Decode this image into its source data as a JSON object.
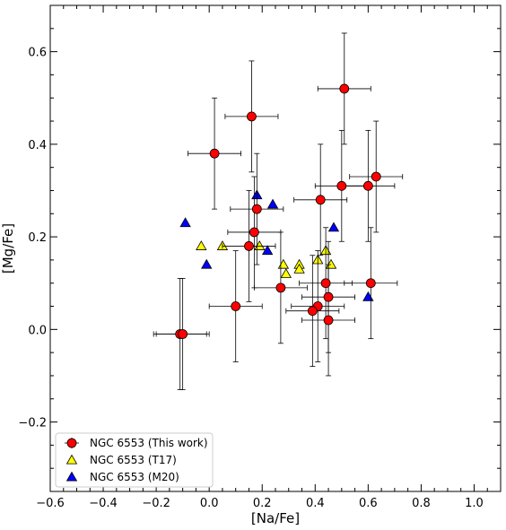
{
  "chart_data": {
    "type": "scatter",
    "xlabel": "[Na/Fe]",
    "ylabel": "[Mg/Fe]",
    "xlim": [
      -0.6,
      1.1
    ],
    "ylim": [
      -0.35,
      0.7
    ],
    "x_ticks": [
      -0.6,
      -0.4,
      -0.2,
      0.0,
      0.2,
      0.4,
      0.6,
      0.8,
      1.0
    ],
    "x_tick_labels": [
      "−0.6",
      "−0.4",
      "−0.2",
      "0.0",
      "0.2",
      "0.4",
      "0.6",
      "0.8",
      "1.0"
    ],
    "y_ticks": [
      -0.2,
      0.0,
      0.2,
      0.4,
      0.6
    ],
    "y_tick_labels": [
      "−0.2",
      "0.0",
      "0.2",
      "0.4",
      "0.6"
    ],
    "legend_position": "lower-left",
    "series": [
      {
        "name": "NGC 6553 (This work)",
        "marker": "circle",
        "color": "#ff0000",
        "points": [
          {
            "x": -0.11,
            "y": -0.01,
            "xerr": 0.1,
            "yerr": 0.12
          },
          {
            "x": -0.1,
            "y": -0.01,
            "xerr": 0.1,
            "yerr": 0.12
          },
          {
            "x": 0.02,
            "y": 0.38,
            "xerr": 0.1,
            "yerr": 0.12
          },
          {
            "x": 0.16,
            "y": 0.46,
            "xerr": 0.1,
            "yerr": 0.12
          },
          {
            "x": 0.51,
            "y": 0.52,
            "xerr": 0.1,
            "yerr": 0.12
          },
          {
            "x": 0.18,
            "y": 0.26,
            "xerr": 0.1,
            "yerr": 0.12
          },
          {
            "x": 0.17,
            "y": 0.21,
            "xerr": 0.1,
            "yerr": 0.12
          },
          {
            "x": 0.15,
            "y": 0.18,
            "xerr": 0.1,
            "yerr": 0.12
          },
          {
            "x": 0.1,
            "y": 0.05,
            "xerr": 0.1,
            "yerr": 0.12
          },
          {
            "x": 0.27,
            "y": 0.09,
            "xerr": 0.1,
            "yerr": 0.12
          },
          {
            "x": 0.42,
            "y": 0.28,
            "xerr": 0.1,
            "yerr": 0.12
          },
          {
            "x": 0.5,
            "y": 0.31,
            "xerr": 0.1,
            "yerr": 0.12
          },
          {
            "x": 0.6,
            "y": 0.31,
            "xerr": 0.1,
            "yerr": 0.12
          },
          {
            "x": 0.63,
            "y": 0.33,
            "xerr": 0.1,
            "yerr": 0.12
          },
          {
            "x": 0.44,
            "y": 0.1,
            "xerr": 0.1,
            "yerr": 0.12
          },
          {
            "x": 0.45,
            "y": 0.07,
            "xerr": 0.1,
            "yerr": 0.12
          },
          {
            "x": 0.41,
            "y": 0.05,
            "xerr": 0.1,
            "yerr": 0.12
          },
          {
            "x": 0.39,
            "y": 0.04,
            "xerr": 0.1,
            "yerr": 0.12
          },
          {
            "x": 0.45,
            "y": 0.02,
            "xerr": 0.1,
            "yerr": 0.12
          },
          {
            "x": 0.61,
            "y": 0.1,
            "xerr": 0.1,
            "yerr": 0.12
          }
        ]
      },
      {
        "name": "NGC 6553 (T17)",
        "marker": "triangle",
        "color": "#ffff00",
        "points": [
          {
            "x": -0.03,
            "y": 0.18
          },
          {
            "x": 0.05,
            "y": 0.18
          },
          {
            "x": 0.19,
            "y": 0.18
          },
          {
            "x": 0.28,
            "y": 0.14
          },
          {
            "x": 0.29,
            "y": 0.12
          },
          {
            "x": 0.34,
            "y": 0.14
          },
          {
            "x": 0.34,
            "y": 0.13
          },
          {
            "x": 0.41,
            "y": 0.15
          },
          {
            "x": 0.44,
            "y": 0.17
          },
          {
            "x": 0.46,
            "y": 0.14
          }
        ]
      },
      {
        "name": "NGC 6553 (M20)",
        "marker": "triangle",
        "color": "#0000ff",
        "points": [
          {
            "x": -0.09,
            "y": 0.23
          },
          {
            "x": -0.01,
            "y": 0.14
          },
          {
            "x": 0.18,
            "y": 0.29
          },
          {
            "x": 0.24,
            "y": 0.27
          },
          {
            "x": 0.22,
            "y": 0.17
          },
          {
            "x": 0.47,
            "y": 0.22
          },
          {
            "x": 0.6,
            "y": 0.07
          }
        ]
      }
    ]
  }
}
